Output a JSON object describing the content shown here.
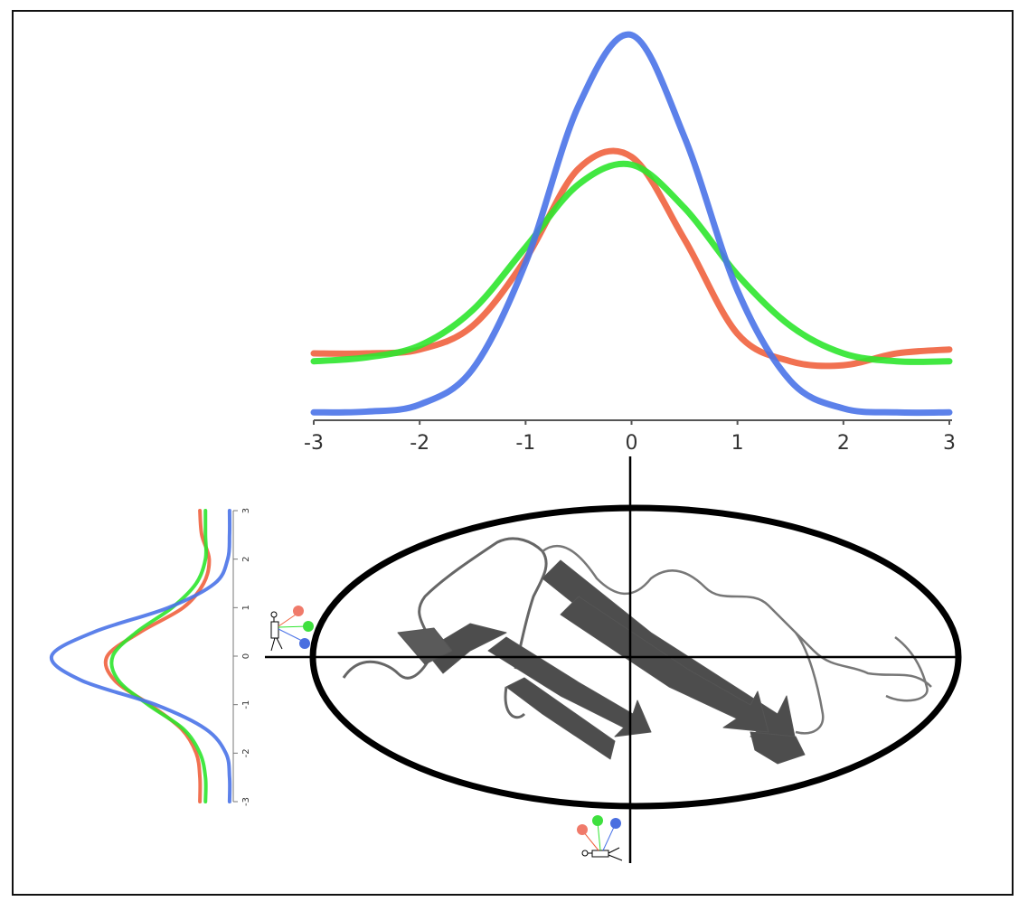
{
  "chart_data": [
    {
      "type": "line",
      "orientation": "horizontal",
      "x": [
        -3,
        -2.5,
        -2,
        -1.5,
        -1,
        -0.5,
        0,
        0.5,
        1,
        1.5,
        2,
        2.5,
        3
      ],
      "series": [
        {
          "color": "#f0623e",
          "values": [
            0.17,
            0.17,
            0.18,
            0.24,
            0.41,
            0.64,
            0.67,
            0.46,
            0.22,
            0.15,
            0.14,
            0.17,
            0.18
          ]
        },
        {
          "color": "#2ee52e",
          "values": [
            0.15,
            0.16,
            0.19,
            0.28,
            0.44,
            0.6,
            0.65,
            0.54,
            0.37,
            0.24,
            0.17,
            0.15,
            0.15
          ]
        },
        {
          "color": "#4a73e8",
          "values": [
            0.02,
            0.022,
            0.04,
            0.13,
            0.4,
            0.8,
            0.98,
            0.72,
            0.33,
            0.1,
            0.03,
            0.02,
            0.02
          ]
        }
      ],
      "xlim": [
        -3,
        3
      ],
      "xticks": [
        -3,
        -2,
        -1,
        0,
        1,
        2,
        3
      ],
      "ylim": [
        0,
        1
      ]
    },
    {
      "type": "line",
      "orientation": "vertical",
      "x": [
        -3,
        -2.5,
        -2,
        -1.5,
        -1,
        -0.5,
        0,
        0.5,
        1,
        1.5,
        2,
        2.5,
        3
      ],
      "series": [
        {
          "color": "#f0623e",
          "values": [
            0.18,
            0.18,
            0.2,
            0.28,
            0.45,
            0.64,
            0.68,
            0.5,
            0.27,
            0.16,
            0.13,
            0.17,
            0.18
          ]
        },
        {
          "color": "#2ee52e",
          "values": [
            0.15,
            0.15,
            0.18,
            0.27,
            0.46,
            0.62,
            0.65,
            0.52,
            0.33,
            0.2,
            0.15,
            0.15,
            0.15
          ]
        },
        {
          "color": "#4a73e8",
          "values": [
            0.02,
            0.02,
            0.04,
            0.15,
            0.42,
            0.82,
            0.98,
            0.75,
            0.35,
            0.1,
            0.03,
            0.02,
            0.02
          ]
        }
      ],
      "xlim": [
        -3,
        3
      ],
      "xticks": [
        -3,
        -2,
        -1,
        0,
        1,
        2,
        3
      ],
      "ylim": [
        0,
        1
      ]
    }
  ]
}
